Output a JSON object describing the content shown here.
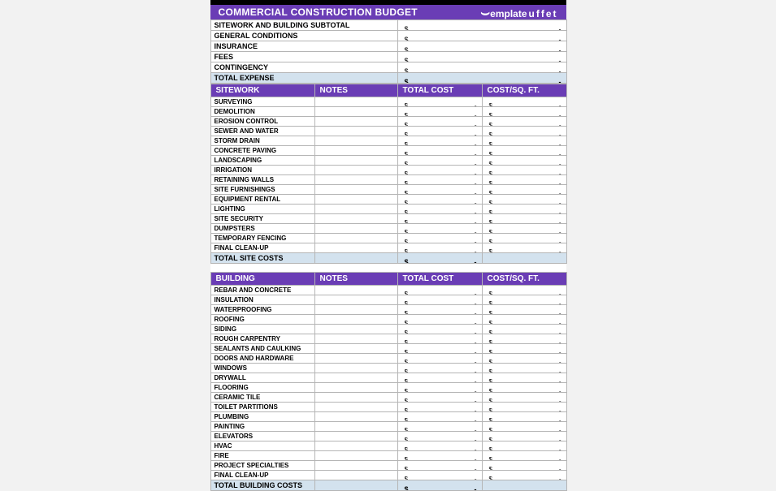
{
  "colors": {
    "header_bg": "#6a3db5",
    "header_text": "#ffffff",
    "total_row_bg": "#d3e2ee",
    "border": "#b5b5b5",
    "page_bg": "#f2f2f2",
    "sheet_bg": "#ffffff",
    "top_border": "#000000"
  },
  "logo": {
    "part1": "emplate",
    "part2": "uffet"
  },
  "title": "COMMERCIAL CONSTRUCTION BUDGET",
  "currency": "$",
  "empty_value": "-",
  "summary": {
    "rows": [
      {
        "label": "SITEWORK AND BUILDING SUBTOTAL",
        "value": "-"
      },
      {
        "label": "GENERAL CONDITIONS",
        "value": "-"
      },
      {
        "label": "INSURANCE",
        "value": "-"
      },
      {
        "label": "FEES",
        "value": "-"
      },
      {
        "label": "CONTINGENCY",
        "value": "-"
      }
    ],
    "total": {
      "label": "TOTAL EXPENSE",
      "value": "-"
    }
  },
  "sections": [
    {
      "header": {
        "c1": "SITEWORK",
        "c2": "NOTES",
        "c3": "TOTAL COST",
        "c4": "COST/SQ. FT."
      },
      "rows": [
        {
          "label": "SURVEYING",
          "total": "-",
          "sqft": "-"
        },
        {
          "label": "DEMOLITION",
          "total": "-",
          "sqft": "-"
        },
        {
          "label": "EROSION CONTROL",
          "total": "-",
          "sqft": "-"
        },
        {
          "label": "SEWER AND WATER",
          "total": "-",
          "sqft": "-"
        },
        {
          "label": "STORM DRAIN",
          "total": "-",
          "sqft": "-"
        },
        {
          "label": "CONCRETE PAVING",
          "total": "-",
          "sqft": "-"
        },
        {
          "label": "LANDSCAPING",
          "total": "-",
          "sqft": "-"
        },
        {
          "label": "IRRIGATION",
          "total": "-",
          "sqft": "-"
        },
        {
          "label": "RETAINING WALLS",
          "total": "-",
          "sqft": "-"
        },
        {
          "label": "SITE FURNISHINGS",
          "total": "-",
          "sqft": "-"
        },
        {
          "label": "EQUIPMENT RENTAL",
          "total": "-",
          "sqft": "-"
        },
        {
          "label": "LIGHTING",
          "total": "-",
          "sqft": "-"
        },
        {
          "label": "SITE SECURITY",
          "total": "-",
          "sqft": "-"
        },
        {
          "label": "DUMPSTERS",
          "total": "-",
          "sqft": "-"
        },
        {
          "label": "TEMPORARY FENCING",
          "total": "-",
          "sqft": "-"
        },
        {
          "label": "FINAL CLEAN-UP",
          "total": "-",
          "sqft": "-"
        }
      ],
      "total": {
        "label": "TOTAL SITE COSTS",
        "value": "-"
      }
    },
    {
      "header": {
        "c1": "BUILDING",
        "c2": "NOTES",
        "c3": "TOTAL COST",
        "c4": "COST/SQ. FT."
      },
      "rows": [
        {
          "label": "REBAR AND CONCRETE",
          "total": "-",
          "sqft": "-"
        },
        {
          "label": "INSULATION",
          "total": "-",
          "sqft": "-"
        },
        {
          "label": "WATERPROOFING",
          "total": "-",
          "sqft": "-"
        },
        {
          "label": "ROOFING",
          "total": "-",
          "sqft": "-"
        },
        {
          "label": "SIDING",
          "total": "-",
          "sqft": "-"
        },
        {
          "label": "ROUGH CARPENTRY",
          "total": "-",
          "sqft": "-"
        },
        {
          "label": "SEALANTS AND CAULKING",
          "total": "-",
          "sqft": "-"
        },
        {
          "label": "DOORS AND HARDWARE",
          "total": "-",
          "sqft": "-"
        },
        {
          "label": "WINDOWS",
          "total": "-",
          "sqft": "-"
        },
        {
          "label": "DRYWALL",
          "total": "-",
          "sqft": "-"
        },
        {
          "label": "FLOORING",
          "total": "-",
          "sqft": "-"
        },
        {
          "label": "CERAMIC TILE",
          "total": "-",
          "sqft": "-"
        },
        {
          "label": "TOILET PARTITIONS",
          "total": "-",
          "sqft": "-"
        },
        {
          "label": "PLUMBING",
          "total": "-",
          "sqft": "-"
        },
        {
          "label": "PAINTING",
          "total": "-",
          "sqft": "-"
        },
        {
          "label": "ELEVATORS",
          "total": "-",
          "sqft": "-"
        },
        {
          "label": "HVAC",
          "total": "-",
          "sqft": "-"
        },
        {
          "label": "FIRE",
          "total": "-",
          "sqft": "-"
        },
        {
          "label": "PROJECT SPECIALTIES",
          "total": "-",
          "sqft": "-"
        },
        {
          "label": "FINAL CLEAN-UP",
          "total": "-",
          "sqft": "-"
        }
      ],
      "total": {
        "label": "TOTAL BUILDING COSTS",
        "value": "-"
      }
    }
  ]
}
